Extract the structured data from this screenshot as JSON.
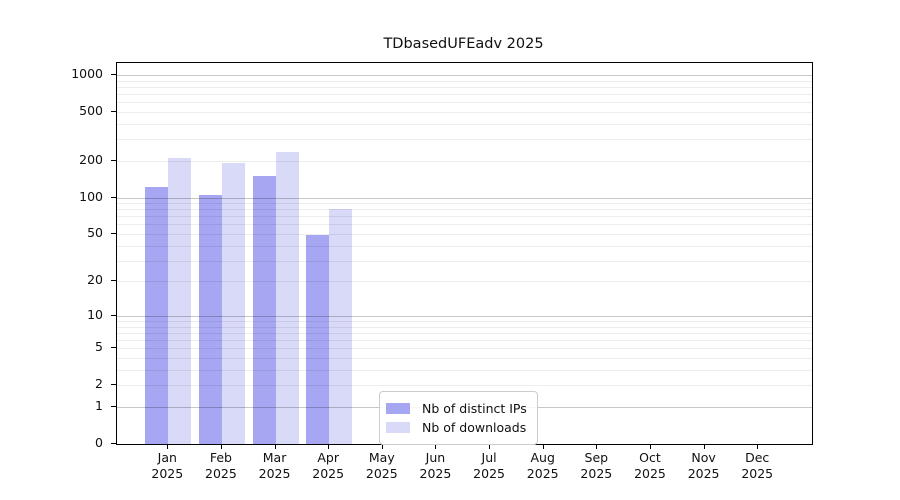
{
  "title": "TDbasedUFEadv 2025",
  "chart_data": {
    "type": "bar",
    "title": "TDbasedUFEadv 2025",
    "year": "2025",
    "months": [
      "Jan",
      "Feb",
      "Mar",
      "Apr",
      "May",
      "Jun",
      "Jul",
      "Aug",
      "Sep",
      "Oct",
      "Nov",
      "Dec"
    ],
    "categories": [
      "Jan 2025",
      "Feb 2025",
      "Mar 2025",
      "Apr 2025",
      "May 2025",
      "Jun 2025",
      "Jul 2025",
      "Aug 2025",
      "Sep 2025",
      "Oct 2025",
      "Nov 2025",
      "Dec 2025"
    ],
    "series": [
      {
        "name": "Nb of distinct IPs",
        "color": "#a6a6f2",
        "values": [
          122,
          104,
          150,
          49,
          null,
          null,
          null,
          null,
          null,
          null,
          null,
          null
        ]
      },
      {
        "name": "Nb of downloads",
        "color": "#d9d9f8",
        "values": [
          210,
          190,
          235,
          81,
          null,
          null,
          null,
          null,
          null,
          null,
          null,
          null
        ]
      }
    ],
    "y_axis": {
      "scale": "symlog",
      "ticks": [
        0,
        1,
        2,
        5,
        10,
        20,
        50,
        100,
        200,
        500,
        1000
      ],
      "major_gridlines": [
        1,
        10,
        100,
        1000
      ],
      "ylim": [
        0,
        1000
      ]
    },
    "grid": true,
    "legend_position": "lower center-left inside axes"
  },
  "colors": {
    "spine": "#000000",
    "major_grid": "#c7c7c7",
    "minor_grid": "#ededed",
    "background": "#ffffff",
    "text": "#111111"
  }
}
